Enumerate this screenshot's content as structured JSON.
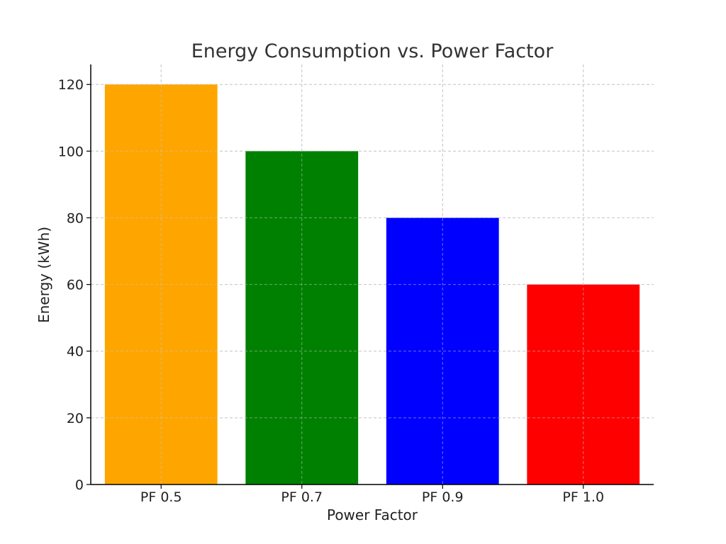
{
  "chart_data": {
    "type": "bar",
    "title": "Energy Consumption vs. Power Factor",
    "xlabel": "Power Factor",
    "ylabel": "Energy (kWh)",
    "categories": [
      "PF 0.5",
      "PF 0.7",
      "PF 0.9",
      "PF 1.0"
    ],
    "values": [
      120,
      100,
      80,
      60
    ],
    "colors": [
      "#ffa500",
      "#008000",
      "#0000ff",
      "#ff0000"
    ],
    "ylim": [
      0,
      126
    ],
    "yticks": [
      0,
      20,
      40,
      60,
      80,
      100,
      120
    ],
    "grid": true,
    "legend": "none"
  }
}
